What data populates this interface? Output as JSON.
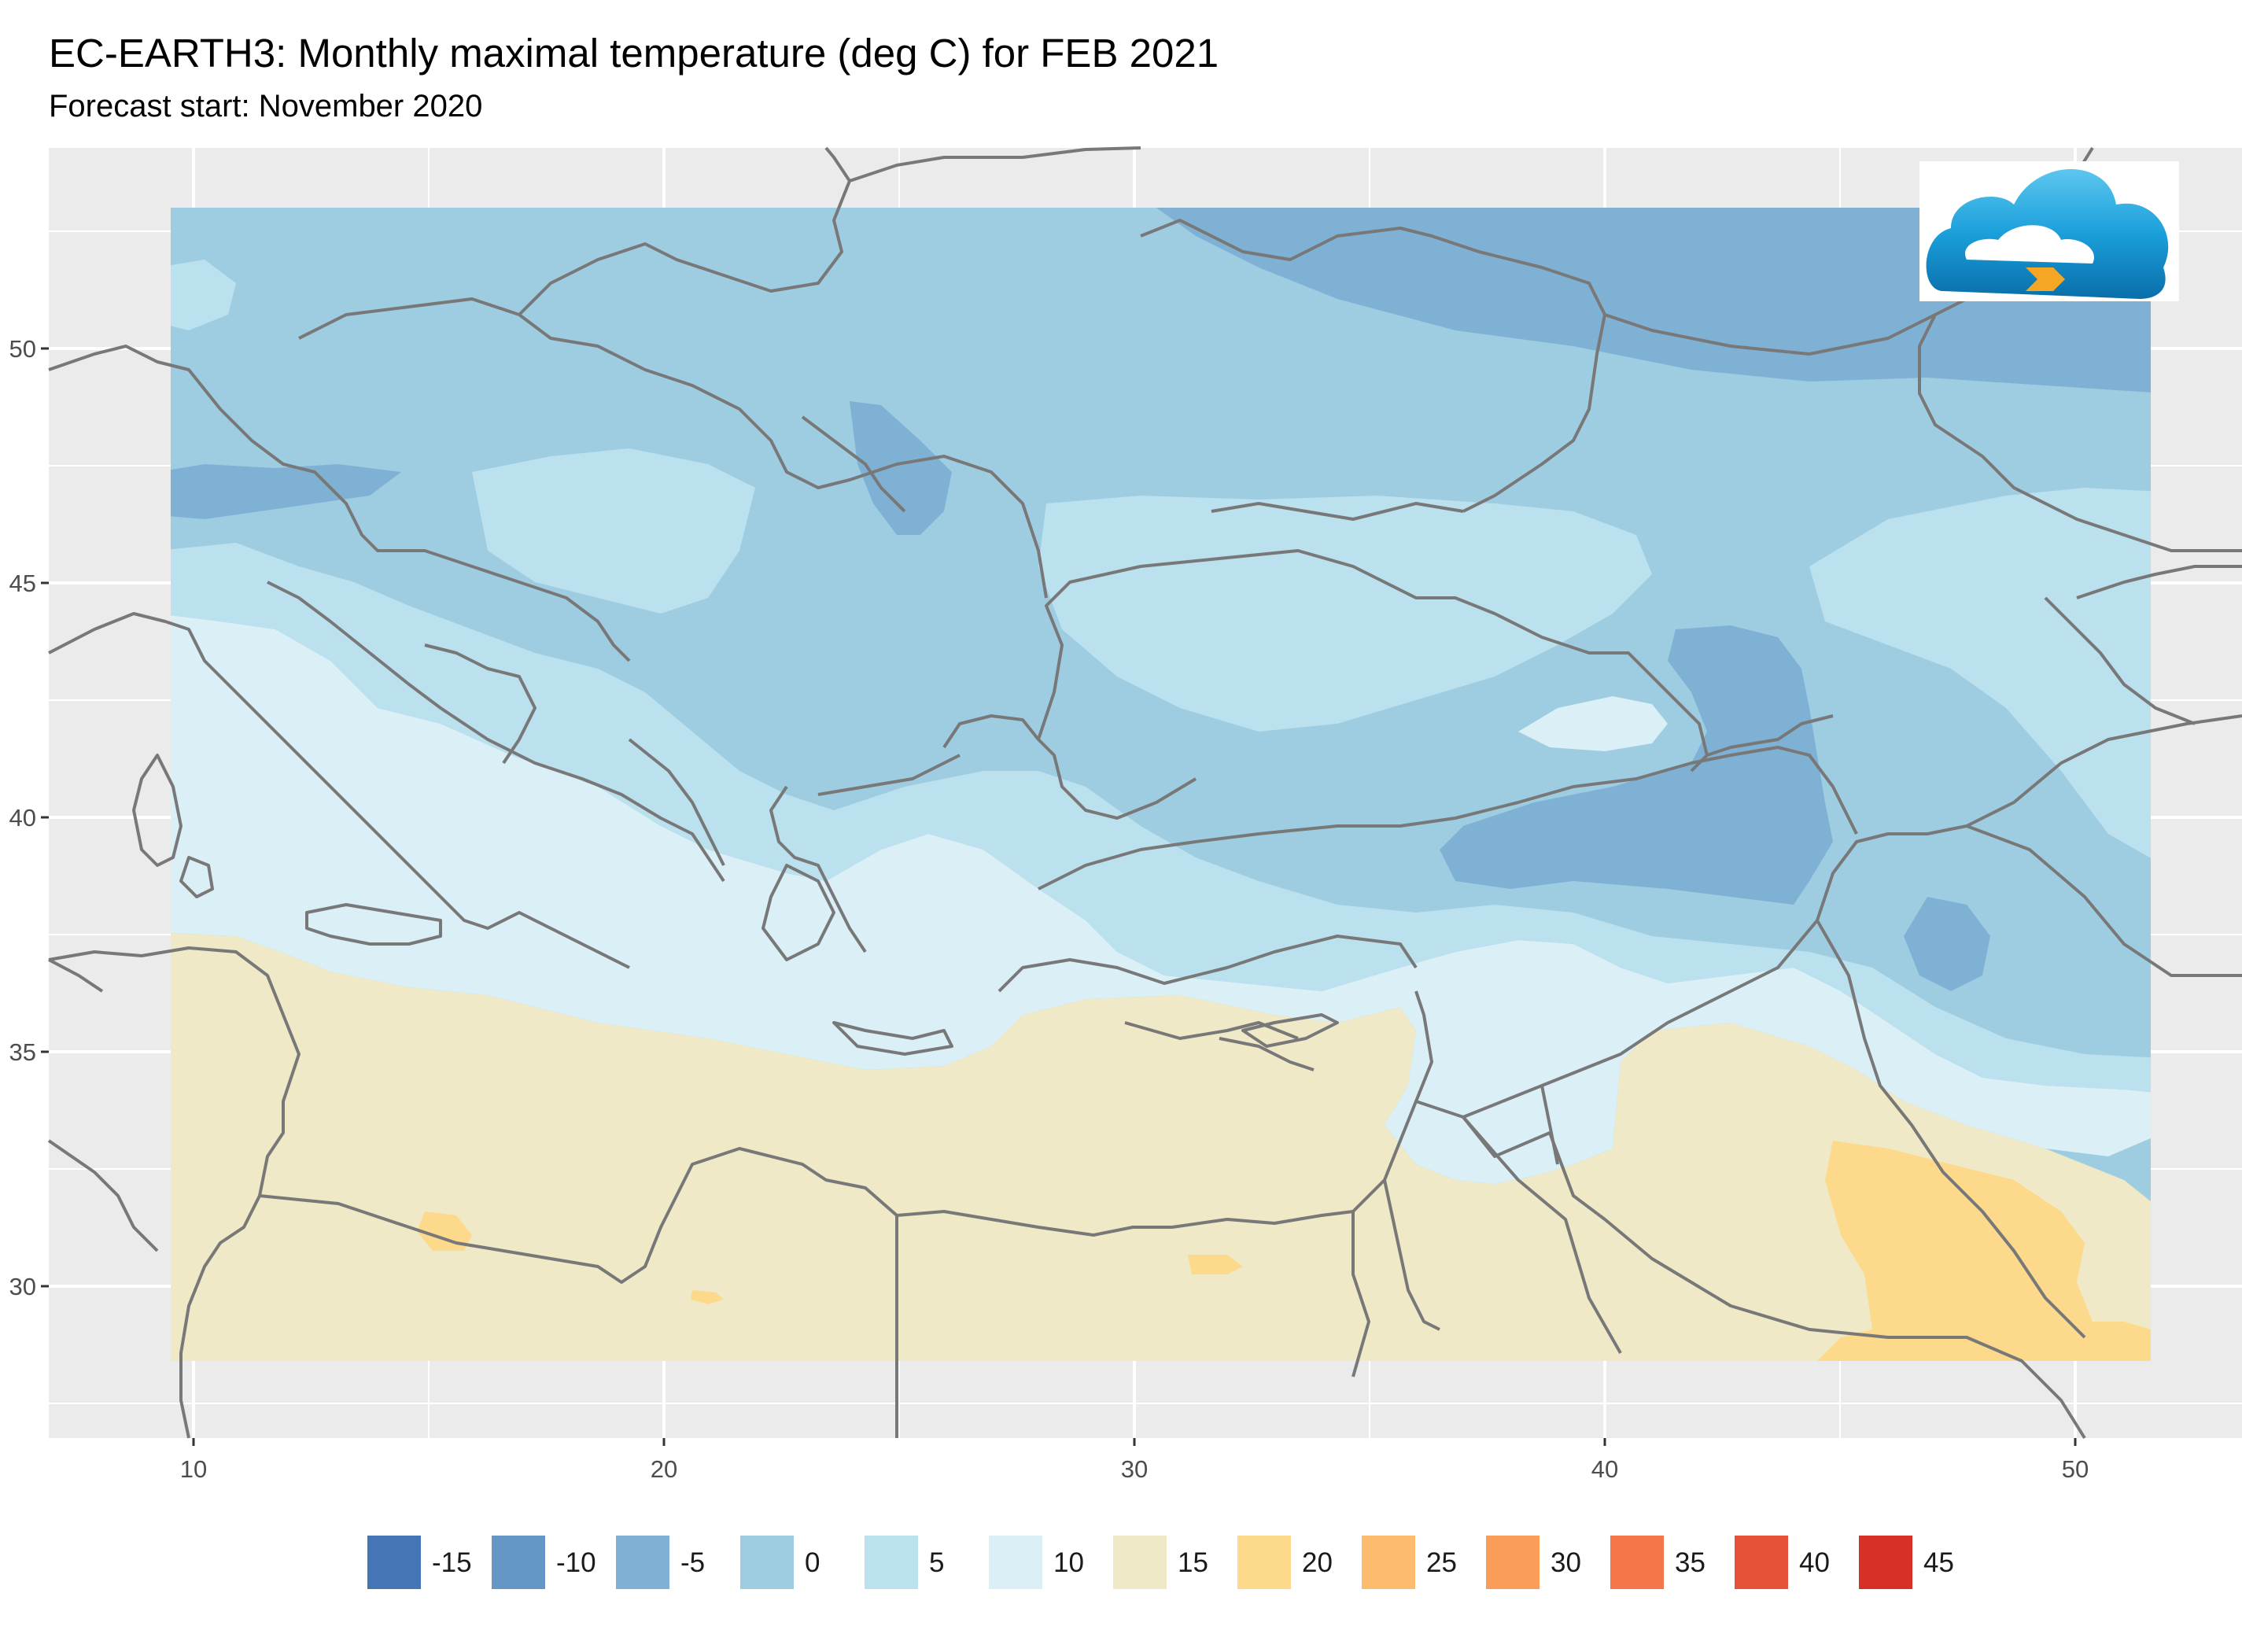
{
  "title": "EC-EARTH3: Monthly maximal temperature (deg C) for FEB 2021",
  "subtitle": "Forecast start: November 2020",
  "logo_icon": "cloud-logo-icon",
  "chart_data": {
    "type": "heatmap",
    "x_ticks": [
      "10",
      "20",
      "30",
      "40",
      "50"
    ],
    "y_ticks": [
      "50",
      "45",
      "40",
      "35",
      "30"
    ],
    "xlim": [
      7,
      54
    ],
    "ylim": [
      27,
      53.5
    ],
    "data_extent": {
      "lon": [
        9.5,
        51.7
      ],
      "lat": [
        28.5,
        53
      ]
    },
    "grid": true,
    "legend_position": "bottom",
    "legend": [
      {
        "label": "-15",
        "color": "#4575b4"
      },
      {
        "label": "-10",
        "color": "#6497c6"
      },
      {
        "label": "-5",
        "color": "#7fb1d5"
      },
      {
        "label": "0",
        "color": "#9ecde2"
      },
      {
        "label": "5",
        "color": "#bbe0ee"
      },
      {
        "label": "10",
        "color": "#daeff6"
      },
      {
        "label": "15",
        "color": "#efe9c7"
      },
      {
        "label": "20",
        "color": "#fdd98b"
      },
      {
        "label": "25",
        "color": "#fdbb6d"
      },
      {
        "label": "30",
        "color": "#f99d59"
      },
      {
        "label": "35",
        "color": "#f57648"
      },
      {
        "label": "40",
        "color": "#e65237"
      },
      {
        "label": "45",
        "color": "#d73027"
      }
    ]
  }
}
